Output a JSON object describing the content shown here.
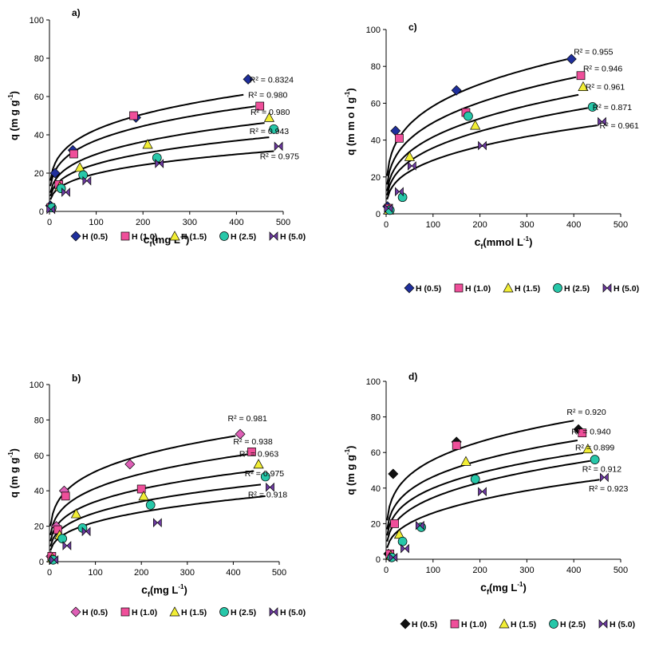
{
  "colors": {
    "H(0.5)": "#1f2f9c",
    "H(1.0)": "#ef4f9a",
    "H(1.5)": "#f2ee35",
    "H(2.5)": "#27c7a9",
    "H(5.0)": "#6e3aa2",
    "H(0.5)_d": "#111111",
    "H(0.5)_b": "#de5fb6"
  },
  "chart_data": [
    {
      "type": "scatter",
      "panel": "a)",
      "xlabel_main": "c",
      "xlabel_sub": "f",
      "xlabel_unit": "(mg L",
      "xlabel_exp": "-1",
      "xlabel_close": ")",
      "ylabel_main": "q  (m g  g",
      "ylabel_exp": "-1",
      "ylabel_close": ")",
      "xlim": [
        0,
        500
      ],
      "ylim": [
        0,
        100
      ],
      "xticks": [
        "0",
        "100",
        "200",
        "300",
        "400",
        "500"
      ],
      "yticks": [
        "0",
        "20",
        "40",
        "60",
        "80",
        "100"
      ],
      "legend_position": "bottom",
      "series": [
        {
          "name": "H (0.5)",
          "marker": "diamond",
          "color_key": "H(0.5)",
          "points": [
            [
              2,
              3
            ],
            [
              12,
              20
            ],
            [
              50,
              32
            ],
            [
              185,
              49
            ],
            [
              425,
              69
            ]
          ],
          "fit": [
            13.5,
            0.25
          ],
          "r2": "R² = 0.8324",
          "r2_at": [
            428,
            69
          ]
        },
        {
          "name": "H (1.0)",
          "marker": "square",
          "color_key": "H(1.0)",
          "points": [
            [
              3,
              2
            ],
            [
              20,
              14
            ],
            [
              52,
              30
            ],
            [
              180,
              50
            ],
            [
              450,
              55
            ]
          ],
          "fit": [
            11.0,
            0.264
          ],
          "r2": "R² = 0.980",
          "r2_at": [
            425,
            61
          ]
        },
        {
          "name": "H (1.5)",
          "marker": "triangle",
          "color_key": "H(1.5)",
          "points": [
            [
              4,
              2
            ],
            [
              22,
              13
            ],
            [
              65,
              23
            ],
            [
              210,
              35
            ],
            [
              470,
              49
            ]
          ],
          "fit": [
            8.0,
            0.286
          ],
          "r2": "R² = 0.980",
          "r2_at": [
            430,
            52
          ]
        },
        {
          "name": "H (2.5)",
          "marker": "circle",
          "color_key": "H(2.5)",
          "points": [
            [
              5,
              2
            ],
            [
              25,
              12
            ],
            [
              72,
              19
            ],
            [
              230,
              28
            ],
            [
              480,
              43
            ]
          ],
          "fit": [
            6.5,
            0.29
          ],
          "r2": "R² = 0.943",
          "r2_at": [
            428,
            42
          ]
        },
        {
          "name": "H (5.0)",
          "marker": "bowtie",
          "color_key": "H(5.0)",
          "points": [
            [
              3,
              1
            ],
            [
              35,
              10
            ],
            [
              80,
              16
            ],
            [
              235,
              25
            ],
            [
              490,
              34
            ]
          ],
          "fit": [
            5.0,
            0.298
          ],
          "r2": "R² = 0.975",
          "r2_at": [
            450,
            29
          ]
        }
      ]
    },
    {
      "type": "scatter",
      "panel": "c)",
      "xlabel_main": "c",
      "xlabel_sub": "f",
      "xlabel_unit": "(mmol L",
      "xlabel_exp": "-1",
      "xlabel_close": ")",
      "ylabel_main": "q  (m m o l  g",
      "ylabel_exp": "-1",
      "ylabel_close": ")",
      "xlim": [
        0,
        500
      ],
      "ylim": [
        0,
        100
      ],
      "xticks": [
        "0",
        "100",
        "200",
        "300",
        "400",
        "500"
      ],
      "yticks": [
        "0",
        "20",
        "40",
        "60",
        "80",
        "100"
      ],
      "legend_position": "bottom",
      "series": [
        {
          "name": "H (0.5)",
          "marker": "diamond",
          "color_key": "H(0.5)",
          "points": [
            [
              3,
              4
            ],
            [
              20,
              45
            ],
            [
              150,
              67
            ],
            [
              395,
              84
            ]
          ],
          "fit": [
            17.0,
            0.268
          ],
          "r2": "R² = 0.955",
          "r2_at": [
            400,
            88
          ]
        },
        {
          "name": "H (1.0)",
          "marker": "square",
          "color_key": "H(1.0)",
          "points": [
            [
              5,
              3
            ],
            [
              28,
              41
            ],
            [
              170,
              55
            ],
            [
              415,
              75
            ]
          ],
          "fit": [
            13.0,
            0.29
          ],
          "r2": "R² = 0.946",
          "r2_at": [
            420,
            79
          ]
        },
        {
          "name": "H (1.5)",
          "marker": "triangle",
          "color_key": "H(1.5)",
          "points": [
            [
              6,
              2
            ],
            [
              50,
              31
            ],
            [
              190,
              48
            ],
            [
              420,
              69
            ]
          ],
          "fit": [
            10.0,
            0.31
          ],
          "r2": "R² = 0.961",
          "r2_at": [
            425,
            69
          ]
        },
        {
          "name": "H (2.5)",
          "marker": "circle",
          "color_key": "H(2.5)",
          "points": [
            [
              8,
              2
            ],
            [
              35,
              9
            ],
            [
              175,
              53
            ],
            [
              440,
              58
            ]
          ],
          "fit": [
            8.0,
            0.325
          ],
          "r2": "R² = 0.871",
          "r2_at": [
            440,
            58
          ]
        },
        {
          "name": "H (5.0)",
          "marker": "bowtie",
          "color_key": "H(5.0)",
          "points": [
            [
              5,
              3
            ],
            [
              28,
              12
            ],
            [
              55,
              26
            ],
            [
              205,
              37
            ],
            [
              460,
              50
            ]
          ],
          "fit": [
            6.2,
            0.335
          ],
          "r2": "R² = 0.961",
          "r2_at": [
            455,
            48
          ]
        }
      ]
    },
    {
      "type": "scatter",
      "panel": "b)",
      "xlabel_main": "c",
      "xlabel_sub": "f",
      "xlabel_unit": "(mg L",
      "xlabel_exp": "-1",
      "xlabel_close": ")",
      "ylabel_main": "q  (m g  g",
      "ylabel_exp": "-1",
      "ylabel_close": ")",
      "xlim": [
        0,
        500
      ],
      "ylim": [
        0,
        100
      ],
      "xticks": [
        "0",
        "100",
        "200",
        "300",
        "400",
        "500"
      ],
      "yticks": [
        "0",
        "20",
        "40",
        "60",
        "80",
        "100"
      ],
      "legend_position": "bottom",
      "series": [
        {
          "name": "H (0.5)",
          "marker": "diamond",
          "color_key": "H(0.5)_b",
          "points": [
            [
              3,
              3
            ],
            [
              15,
              20
            ],
            [
              32,
              40
            ],
            [
              175,
              55
            ],
            [
              415,
              72
            ]
          ],
          "fit": [
            17.0,
            0.238
          ],
          "r2": "R² = 0.981",
          "r2_at": [
            388,
            81
          ]
        },
        {
          "name": "H (1.0)",
          "marker": "square",
          "color_key": "H(1.0)",
          "points": [
            [
              5,
              3
            ],
            [
              18,
              18
            ],
            [
              35,
              37
            ],
            [
              200,
              41
            ],
            [
              440,
              62
            ]
          ],
          "fit": [
            12.5,
            0.26
          ],
          "r2": "R² = 0.938",
          "r2_at": [
            400,
            68
          ]
        },
        {
          "name": "H (1.5)",
          "marker": "triangle",
          "color_key": "H(1.5)",
          "points": [
            [
              6,
              2
            ],
            [
              22,
              15
            ],
            [
              58,
              27
            ],
            [
              205,
              37
            ],
            [
              455,
              55
            ]
          ],
          "fit": [
            9.5,
            0.276
          ],
          "r2": "R² = 0.963",
          "r2_at": [
            413,
            61
          ]
        },
        {
          "name": "H (2.5)",
          "marker": "circle",
          "color_key": "H(2.5)",
          "points": [
            [
              8,
              1
            ],
            [
              28,
              13
            ],
            [
              72,
              19
            ],
            [
              220,
              32
            ],
            [
              470,
              48
            ]
          ],
          "fit": [
            7.0,
            0.298
          ],
          "r2": "R² = 0.975",
          "r2_at": [
            425,
            50
          ]
        },
        {
          "name": "H (5.0)",
          "marker": "bowtie",
          "color_key": "H(5.0)",
          "points": [
            [
              10,
              1
            ],
            [
              38,
              9
            ],
            [
              80,
              17
            ],
            [
              235,
              22
            ],
            [
              480,
              42
            ]
          ],
          "fit": [
            5.0,
            0.325
          ],
          "r2": "R² = 0.918",
          "r2_at": [
            432,
            38
          ]
        }
      ]
    },
    {
      "type": "scatter",
      "panel": "d)",
      "xlabel_main": "c",
      "xlabel_sub": "f",
      "xlabel_unit": "(mg L",
      "xlabel_exp": "-1",
      "xlabel_close": ")",
      "ylabel_main": "q  (m g  g",
      "ylabel_exp": "-1",
      "ylabel_close": ")",
      "xlim": [
        0,
        500
      ],
      "ylim": [
        0,
        100
      ],
      "xticks": [
        "0",
        "100",
        "200",
        "300",
        "400",
        "500"
      ],
      "yticks": [
        "0",
        "20",
        "40",
        "60",
        "80",
        "100"
      ],
      "legend_position": "bottom",
      "series": [
        {
          "name": "H (0.5)",
          "marker": "diamond",
          "color_key": "H(0.5)_d",
          "points": [
            [
              5,
              3
            ],
            [
              15,
              48
            ],
            [
              150,
              66
            ],
            [
              410,
              73
            ]
          ],
          "fit": [
            18.5,
            0.24
          ],
          "r2": "R² = 0.920",
          "r2_at": [
            385,
            83
          ]
        },
        {
          "name": "H (1.0)",
          "marker": "square",
          "color_key": "H(1.0)",
          "points": [
            [
              8,
              3
            ],
            [
              18,
              20
            ],
            [
              150,
              64
            ],
            [
              418,
              71
            ]
          ],
          "fit": [
            14.0,
            0.26
          ],
          "r2": "R² = 0.940",
          "r2_at": [
            395,
            72
          ]
        },
        {
          "name": "H (1.5)",
          "marker": "triangle",
          "color_key": "H(1.5)",
          "points": [
            [
              10,
              2
            ],
            [
              28,
              14
            ],
            [
              170,
              55
            ],
            [
              430,
              62
            ]
          ],
          "fit": [
            11.0,
            0.28
          ],
          "r2": "R² = 0.899",
          "r2_at": [
            403,
            63
          ]
        },
        {
          "name": "H (2.5)",
          "marker": "circle",
          "color_key": "H(2.5)",
          "points": [
            [
              12,
              1
            ],
            [
              35,
              10
            ],
            [
              75,
              18
            ],
            [
              190,
              45
            ],
            [
              445,
              56
            ]
          ],
          "fit": [
            8.0,
            0.318
          ],
          "r2": "R² = 0.912",
          "r2_at": [
            418,
            51
          ]
        },
        {
          "name": "H (5.0)",
          "marker": "bowtie",
          "color_key": "H(5.0)",
          "points": [
            [
              15,
              1
            ],
            [
              40,
              6
            ],
            [
              72,
              19
            ],
            [
              205,
              38
            ],
            [
              465,
              46
            ]
          ],
          "fit": [
            5.0,
            0.358
          ],
          "r2": "R² = 0.923",
          "r2_at": [
            432,
            40
          ]
        }
      ]
    }
  ]
}
